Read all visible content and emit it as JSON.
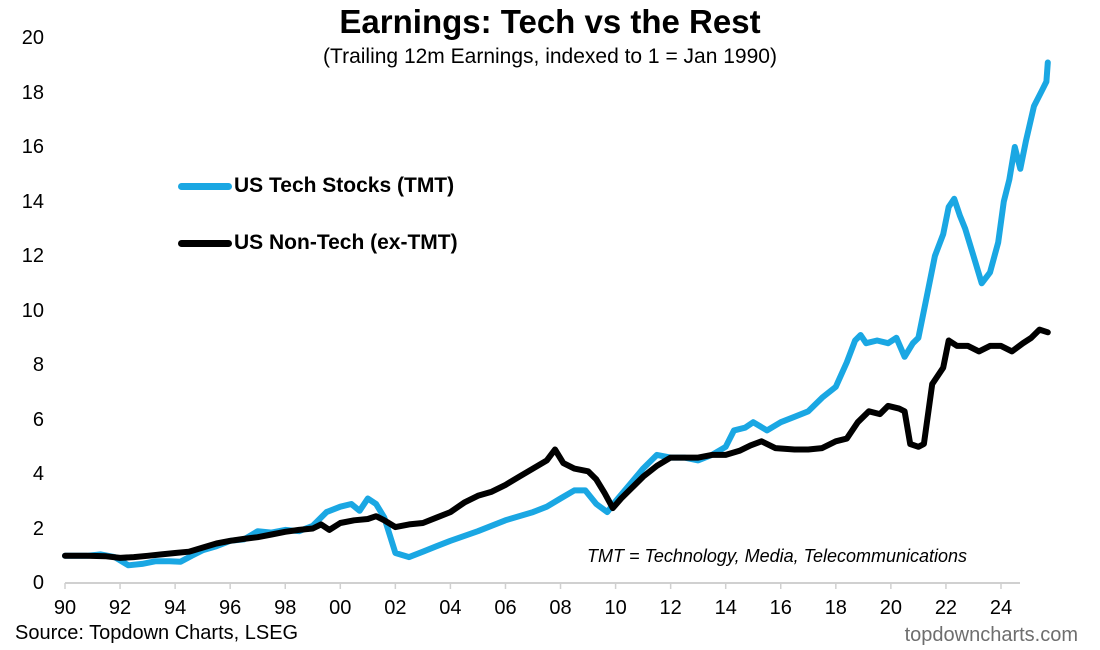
{
  "chart_data": {
    "type": "line",
    "title": "Earnings: Tech vs the Rest",
    "subtitle": "(Trailing 12m Earnings, indexed to 1 = Jan 1990)",
    "xlabel": "",
    "ylabel": "",
    "xlim": [
      1990,
      2025.7
    ],
    "ylim": [
      0,
      20
    ],
    "yticks": [
      0,
      2,
      4,
      6,
      8,
      10,
      12,
      14,
      16,
      18,
      20
    ],
    "ytick_labels": [
      "0",
      "2",
      "4",
      "6",
      "8",
      "10",
      "12",
      "14",
      "16",
      "18",
      "20"
    ],
    "xticks": [
      1990,
      1992,
      1994,
      1996,
      1998,
      2000,
      2002,
      2004,
      2006,
      2008,
      2010,
      2012,
      2014,
      2016,
      2018,
      2020,
      2022,
      2024
    ],
    "xtick_labels": [
      "90",
      "92",
      "94",
      "96",
      "98",
      "00",
      "02",
      "04",
      "06",
      "08",
      "10",
      "12",
      "14",
      "16",
      "18",
      "20",
      "22",
      "24"
    ],
    "grid": false,
    "legend_placement": "top-left",
    "series": [
      {
        "name": "US Tech Stocks (TMT)",
        "color": "#1aa7e3",
        "x": [
          1990,
          1990.8,
          1991.3,
          1991.8,
          1992.3,
          1992.8,
          1993.3,
          1993.8,
          1994.2,
          1994.6,
          1995,
          1995.5,
          1996,
          1996.5,
          1997,
          1997.5,
          1998,
          1998.5,
          1999,
          1999.5,
          2000,
          2000.4,
          2000.7,
          2001,
          2001.3,
          2001.6,
          2002,
          2002.5,
          2003,
          2003.5,
          2004,
          2005,
          2006,
          2007,
          2007.5,
          2008,
          2008.5,
          2008.9,
          2009.3,
          2009.7,
          2010,
          2010.5,
          2011,
          2011.5,
          2012,
          2012.5,
          2013,
          2013.5,
          2014,
          2014.3,
          2014.7,
          2015,
          2015.5,
          2016,
          2016.5,
          2017,
          2017.5,
          2018,
          2018.4,
          2018.7,
          2018.9,
          2019.1,
          2019.5,
          2019.9,
          2020.2,
          2020.5,
          2020.8,
          2021,
          2021.3,
          2021.6,
          2021.9,
          2022.1,
          2022.3,
          2022.5,
          2022.7,
          2023,
          2023.3,
          2023.6,
          2023.9,
          2024.1,
          2024.3,
          2024.5,
          2024.7,
          2024.9,
          2025.2,
          2025.5,
          2025.65,
          2025.7
        ],
        "values": [
          1.0,
          1.0,
          1.05,
          0.95,
          0.65,
          0.7,
          0.8,
          0.8,
          0.78,
          1.0,
          1.2,
          1.35,
          1.55,
          1.6,
          1.9,
          1.85,
          1.95,
          1.9,
          2.1,
          2.6,
          2.8,
          2.9,
          2.65,
          3.1,
          2.9,
          2.4,
          1.1,
          0.95,
          1.15,
          1.35,
          1.55,
          1.9,
          2.3,
          2.6,
          2.8,
          3.1,
          3.4,
          3.4,
          2.9,
          2.6,
          3.0,
          3.6,
          4.2,
          4.7,
          4.6,
          4.6,
          4.5,
          4.7,
          5.0,
          5.6,
          5.7,
          5.9,
          5.6,
          5.9,
          6.1,
          6.3,
          6.8,
          7.2,
          8.1,
          8.9,
          9.1,
          8.8,
          8.9,
          8.8,
          9.0,
          8.3,
          8.8,
          9.0,
          10.5,
          12.0,
          12.8,
          13.8,
          14.1,
          13.5,
          13.0,
          12.0,
          11.0,
          11.4,
          12.5,
          14.0,
          14.8,
          16.0,
          15.2,
          16.2,
          17.5,
          18.1,
          18.4,
          19.1
        ]
      },
      {
        "name": "US Non-Tech (ex-TMT)",
        "color": "#000000",
        "x": [
          1990,
          1990.8,
          1991.5,
          1992,
          1992.5,
          1993,
          1993.5,
          1994,
          1994.5,
          1995,
          1995.5,
          1996,
          1996.5,
          1997,
          1997.5,
          1998,
          1998.5,
          1999,
          1999.3,
          1999.6,
          2000,
          2000.5,
          2001,
          2001.3,
          2001.6,
          2002,
          2002.5,
          2003,
          2003.5,
          2004,
          2004.5,
          2005,
          2005.5,
          2006,
          2006.5,
          2007,
          2007.5,
          2007.8,
          2008.1,
          2008.5,
          2009,
          2009.3,
          2009.6,
          2009.9,
          2010.2,
          2010.6,
          2011,
          2011.5,
          2012,
          2012.5,
          2013,
          2013.5,
          2014,
          2014.5,
          2014.9,
          2015.3,
          2015.8,
          2016.5,
          2017,
          2017.5,
          2018,
          2018.4,
          2018.8,
          2019.2,
          2019.6,
          2019.9,
          2020.3,
          2020.5,
          2020.7,
          2021,
          2021.2,
          2021.5,
          2021.9,
          2022.1,
          2022.4,
          2022.8,
          2023.2,
          2023.6,
          2024,
          2024.4,
          2024.8,
          2025.1,
          2025.4,
          2025.7
        ],
        "values": [
          1.0,
          1.0,
          0.98,
          0.92,
          0.95,
          1.0,
          1.05,
          1.1,
          1.15,
          1.3,
          1.45,
          1.55,
          1.62,
          1.68,
          1.78,
          1.88,
          1.95,
          2.0,
          2.15,
          1.95,
          2.2,
          2.3,
          2.35,
          2.45,
          2.3,
          2.05,
          2.15,
          2.2,
          2.4,
          2.6,
          2.95,
          3.2,
          3.35,
          3.6,
          3.9,
          4.2,
          4.5,
          4.9,
          4.4,
          4.2,
          4.1,
          3.8,
          3.3,
          2.75,
          3.1,
          3.5,
          3.9,
          4.3,
          4.6,
          4.6,
          4.6,
          4.7,
          4.7,
          4.85,
          5.05,
          5.2,
          4.95,
          4.9,
          4.9,
          4.95,
          5.2,
          5.3,
          5.9,
          6.3,
          6.2,
          6.5,
          6.4,
          6.3,
          5.1,
          5.0,
          5.1,
          7.3,
          7.9,
          8.9,
          8.7,
          8.7,
          8.5,
          8.7,
          8.7,
          8.5,
          8.8,
          9.0,
          9.3,
          9.2
        ]
      }
    ],
    "annotations": [
      "TMT = Technology, Media, Telecommunications"
    ]
  },
  "footer": {
    "source": "Source: Topdown Charts, LSEG",
    "brand": "topdowncharts.com"
  }
}
